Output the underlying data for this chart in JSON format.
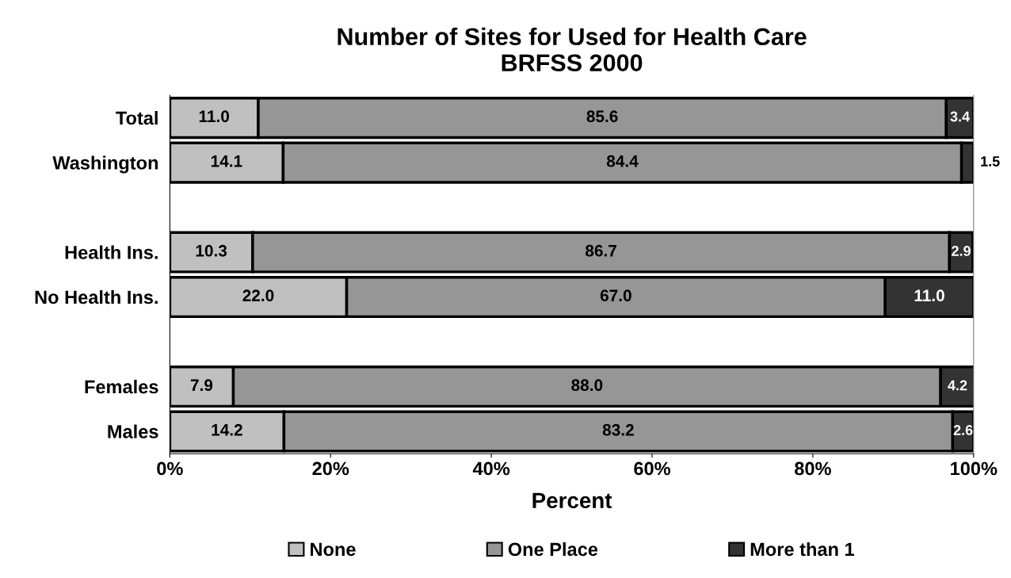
{
  "chart_data": {
    "type": "bar",
    "orientation": "horizontal",
    "stacked": true,
    "title": "Number of Sites for Used for Health Care\nBRFSS 2000",
    "xlabel": "Percent",
    "categories": [
      "Total",
      "Washington",
      null,
      "Health Ins.",
      "No Health Ins.",
      null,
      "Females",
      "Males"
    ],
    "series": [
      {
        "name": "None",
        "color": "#c0c0c0",
        "values": [
          11.0,
          14.1,
          null,
          10.3,
          22.0,
          null,
          7.9,
          14.2
        ],
        "value_labels": [
          "11.0",
          "14.1",
          null,
          "10.3",
          "22.0",
          null,
          "7.9",
          "14.2"
        ]
      },
      {
        "name": "One Place",
        "color": "#969696",
        "values": [
          85.6,
          84.4,
          null,
          86.7,
          67.0,
          null,
          88.0,
          83.2
        ],
        "value_labels": [
          "85.6",
          "84.4",
          null,
          "86.7",
          "67.0",
          null,
          "88.0",
          "83.2"
        ]
      },
      {
        "name": "More than 1",
        "color": "#333333",
        "values": [
          3.4,
          1.5,
          null,
          2.9,
          11.0,
          null,
          4.2,
          2.6
        ],
        "value_labels": [
          "3.4",
          "1.5",
          null,
          "2.9",
          "11.0",
          null,
          "4.2",
          "2.6"
        ]
      }
    ],
    "xlim": [
      0,
      100
    ],
    "xticks": [
      {
        "value": 0,
        "label": "0%"
      },
      {
        "value": 20,
        "label": "20%"
      },
      {
        "value": 40,
        "label": "40%"
      },
      {
        "value": 60,
        "label": "60%"
      },
      {
        "value": 80,
        "label": "80%"
      },
      {
        "value": 100,
        "label": "100%"
      }
    ],
    "legend": "bottom",
    "grid": false
  }
}
